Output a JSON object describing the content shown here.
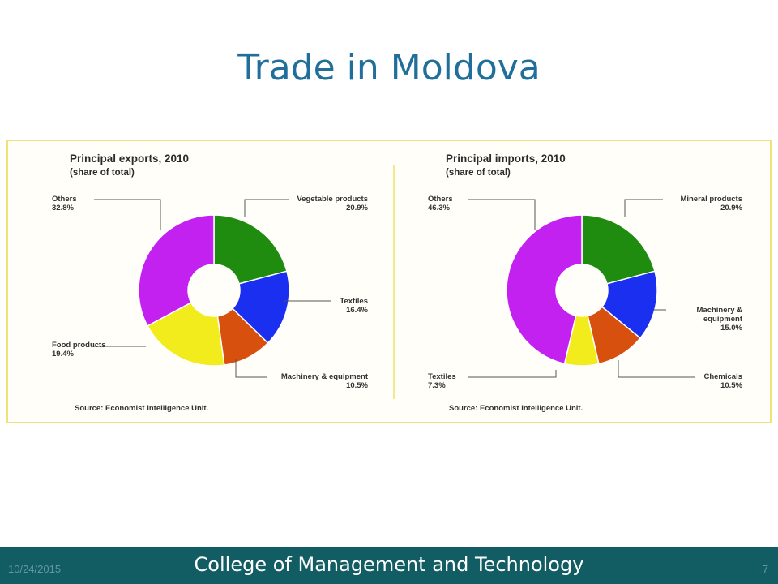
{
  "slide": {
    "title": "Trade in Moldova",
    "footer_date": "10/24/2015",
    "footer_org": "College of Management and Technology",
    "page_number": "7"
  },
  "chart_data": [
    {
      "type": "pie",
      "donut": true,
      "title": "Principal exports, 2010",
      "subtitle": "(share of total)",
      "source": "Source: Economist Intelligence Unit.",
      "slices": [
        {
          "label": "Vegetable products",
          "value_label": "20.9%",
          "value": 20.9,
          "color": "#1f8c0f"
        },
        {
          "label": "Textiles",
          "value_label": "16.4%",
          "value": 16.4,
          "color": "#1b2ff0"
        },
        {
          "label": "Machinery & equipment",
          "value_label": "10.5%",
          "value": 10.5,
          "color": "#d8500e"
        },
        {
          "label": "Food products",
          "value_label": "19.4%",
          "value": 19.4,
          "color": "#f2ec1c"
        },
        {
          "label": "Others",
          "value_label": "32.8%",
          "value": 32.8,
          "color": "#c321f0"
        }
      ]
    },
    {
      "type": "pie",
      "donut": true,
      "title": "Principal imports, 2010",
      "subtitle": "(share of total)",
      "source": "Source: Economist Intelligence Unit.",
      "slices": [
        {
          "label": "Mineral products",
          "value_label": "20.9%",
          "value": 20.9,
          "color": "#1f8c0f"
        },
        {
          "label": "Machinery & equipment",
          "label_lines": [
            "Machinery &",
            "equipment"
          ],
          "value_label": "15.0%",
          "value": 15.0,
          "color": "#1b2ff0"
        },
        {
          "label": "Chemicals",
          "value_label": "10.5%",
          "value": 10.5,
          "color": "#d8500e"
        },
        {
          "label": "Textiles",
          "value_label": "7.3%",
          "value": 7.3,
          "color": "#f2ec1c"
        },
        {
          "label": "Others",
          "value_label": "46.3%",
          "value": 46.3,
          "color": "#c321f0"
        }
      ]
    }
  ]
}
